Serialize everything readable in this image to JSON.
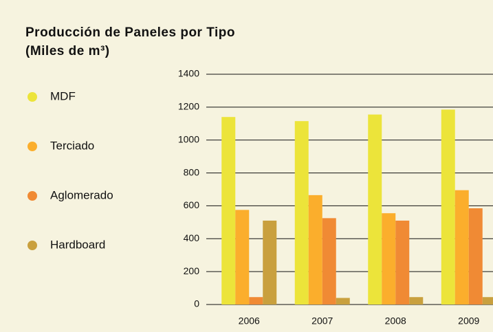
{
  "chart_data": {
    "type": "bar",
    "title": "Producción de Paneles por Tipo",
    "subtitle": "(Miles de m³)",
    "categories": [
      "2006",
      "2007",
      "2008",
      "2009"
    ],
    "series": [
      {
        "name": "MDF",
        "color": "#ece43a",
        "values": [
          1140,
          1115,
          1155,
          1185
        ]
      },
      {
        "name": "Terciado",
        "color": "#fbae2c",
        "values": [
          575,
          665,
          555,
          695
        ]
      },
      {
        "name": "Aglomerado",
        "color": "#f08a34",
        "values": [
          45,
          525,
          510,
          585
        ]
      },
      {
        "name": "Hardboard",
        "color": "#c9a03e",
        "values": [
          510,
          40,
          45,
          45
        ]
      }
    ],
    "ylim": [
      0,
      1400
    ],
    "yticks": [
      0,
      200,
      400,
      600,
      800,
      1000,
      1200,
      1400
    ],
    "grid": true,
    "legend": "left"
  }
}
